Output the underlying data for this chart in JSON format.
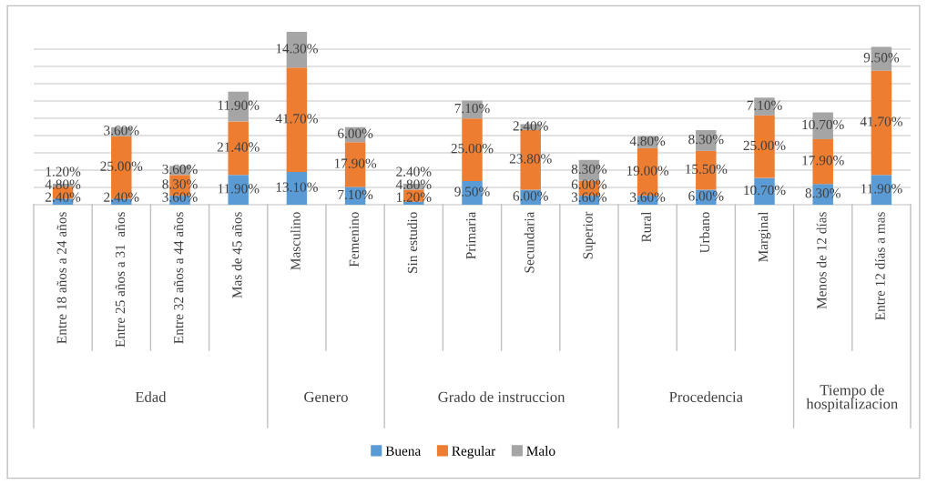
{
  "chart_data": {
    "type": "bar",
    "stacked": true,
    "grid": "y",
    "legend": "bottom",
    "categories": [
      "Entre 18 años a 24 años",
      "Entre 25 años a 31  años",
      "Entre 32 años a 44 años",
      "Mas de 45 años",
      "Masculino",
      "Femenino",
      "Sin estudio",
      "Primaria",
      "Secundaria",
      "Superior",
      "Rural",
      "Urbano",
      "Marginal",
      "Menos de 12 días",
      "Entre 12 días a mas"
    ],
    "series": [
      {
        "name": "Buena",
        "color": "#5b9bd5",
        "values": [
          2.4,
          2.4,
          3.6,
          11.9,
          13.1,
          7.1,
          1.2,
          9.5,
          6.0,
          3.6,
          3.6,
          6.0,
          10.7,
          8.3,
          11.9
        ],
        "value_labels": [
          "2.40%",
          "2.40%",
          "3.60%",
          "11.90%",
          "13.10%",
          "7.10%",
          "1.20%",
          "9.50%",
          "6.00%",
          "3.60%",
          "3.60%",
          "6.00%",
          "10.70%",
          "8.30%",
          "11.90%"
        ]
      },
      {
        "name": "Regular",
        "color": "#ed7d31",
        "values": [
          4.8,
          25.0,
          8.3,
          21.4,
          41.7,
          17.9,
          4.8,
          25.0,
          23.8,
          6.0,
          19.0,
          15.5,
          25.0,
          17.9,
          41.7
        ],
        "value_labels": [
          "4.80%",
          "25.00%",
          "8.30%",
          "21.40%",
          "41.70%",
          "17.90%",
          "4.80%",
          "25.00%",
          "23.80%",
          "6.00%",
          "19.00%",
          "15.50%",
          "25.00%",
          "17.90%",
          "41.70%"
        ]
      },
      {
        "name": "Malo",
        "color": "#a5a5a5",
        "values": [
          1.2,
          3.6,
          3.6,
          11.9,
          14.3,
          6.0,
          2.4,
          7.1,
          2.4,
          8.3,
          4.8,
          8.3,
          7.1,
          10.7,
          9.5
        ],
        "value_labels": [
          "1.20%",
          "3.60%",
          "3.60%",
          "11.90%",
          "14.30%",
          "6.00%",
          "2.40%",
          "7.10%",
          "2.40%",
          "8.30%",
          "4.80%",
          "8.30%",
          "7.10%",
          "10.70%",
          "9.50%"
        ]
      }
    ],
    "annotations": [
      "Edad",
      "Genero",
      "Grado de instruccion",
      "Procedencia",
      "Tiempo de\nhospitalizacion"
    ]
  }
}
